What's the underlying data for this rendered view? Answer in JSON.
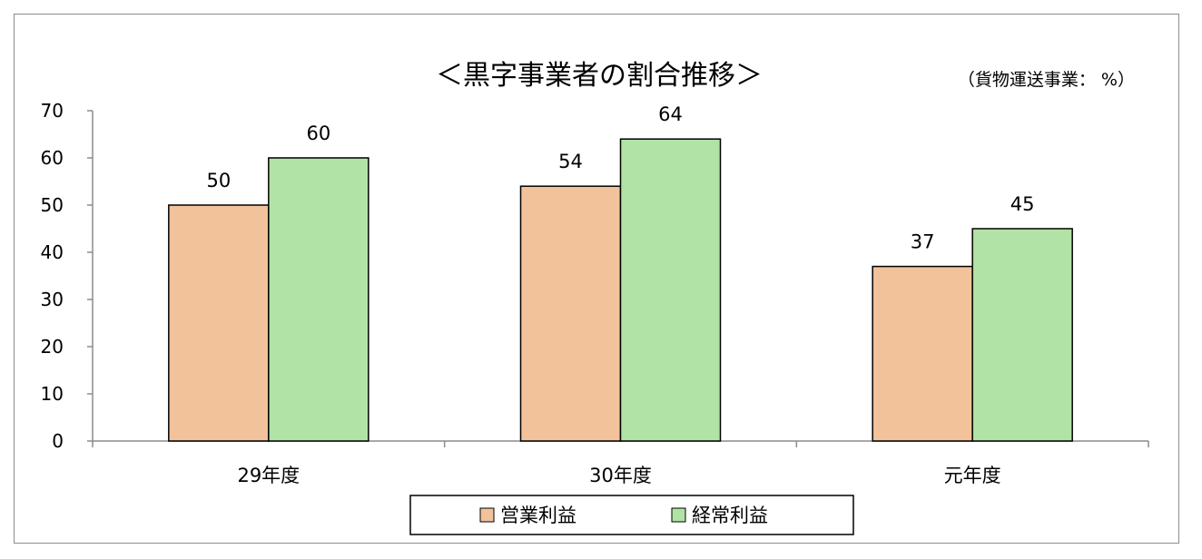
{
  "chart_data": {
    "type": "bar",
    "title": "＜黒字事業者の割合推移＞",
    "unit_note": "（貨物運送事業： %）",
    "categories": [
      "29年度",
      "30年度",
      "元年度"
    ],
    "series": [
      {
        "name": "営業利益",
        "values": [
          50,
          54,
          37
        ],
        "color": "#f2c29b"
      },
      {
        "name": "経常利益",
        "values": [
          60,
          64,
          45
        ],
        "color": "#b0e3a5"
      }
    ],
    "ylim": [
      0,
      70
    ],
    "yticks": [
      0,
      10,
      20,
      30,
      40,
      50,
      60,
      70
    ],
    "grid": false,
    "legend_position": "bottom",
    "bar_edge_color": "#000000",
    "axis_color": "#8c8c8c"
  }
}
